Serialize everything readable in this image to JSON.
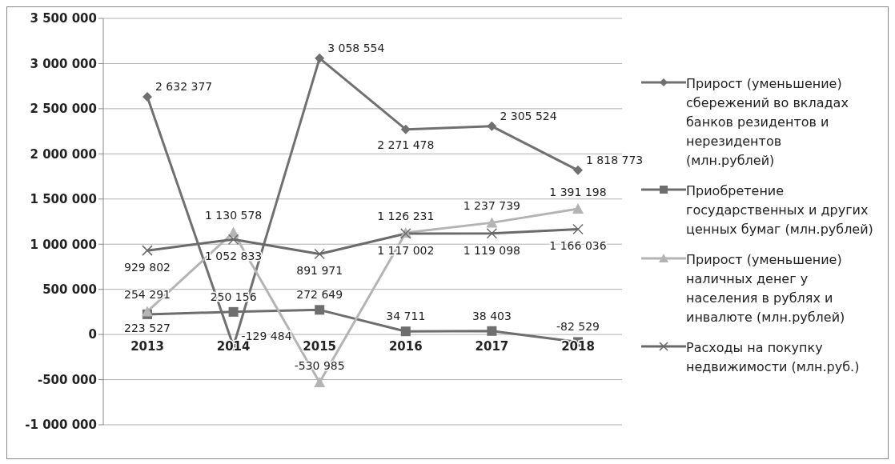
{
  "chart_data": {
    "type": "line",
    "categories": [
      "2013",
      "2014",
      "2015",
      "2016",
      "2017",
      "2018"
    ],
    "ylim": [
      -1000000,
      3500000
    ],
    "yticks": [
      {
        "value": -1000000,
        "label": "-1 000 000"
      },
      {
        "value": -500000,
        "label": "-500 000"
      },
      {
        "value": 0,
        "label": "0"
      },
      {
        "value": 500000,
        "label": "500 000"
      },
      {
        "value": 1000000,
        "label": "1 000 000"
      },
      {
        "value": 1500000,
        "label": "1 500 000"
      },
      {
        "value": 2000000,
        "label": "2 000 000"
      },
      {
        "value": 2500000,
        "label": "2 500 000"
      },
      {
        "value": 3000000,
        "label": "3 000 000"
      },
      {
        "value": 3500000,
        "label": "3 500 000"
      }
    ],
    "grid": "y",
    "legend": "right",
    "series": [
      {
        "name": "Прирост (уменьшение) сбережений  во вкладах банков резидентов и нерезидентов (млн.рублей)",
        "color": "#707070",
        "marker": "diamond",
        "values": [
          2632377,
          -129484,
          3058554,
          2271478,
          2305524,
          1818773
        ],
        "value_labels": [
          "2 632 377",
          "-129 484",
          "3 058 554",
          "2 271 478",
          "2 305 524",
          "1 818 773"
        ]
      },
      {
        "name": "Приобретение государственных и других ценных бумаг (млн.рублей)",
        "color": "#6e6e6e",
        "marker": "square",
        "values": [
          223527,
          250156,
          272649,
          34711,
          38403,
          -82529
        ],
        "value_labels": [
          "223 527",
          "250 156",
          "272 649",
          "34 711",
          "38 403",
          "-82 529"
        ]
      },
      {
        "name": "Прирост (уменьшение) наличных денег у населения в рублях и инвалюте (млн.рублей)",
        "color": "#b4b4b4",
        "marker": "triangle",
        "values": [
          254291,
          1130578,
          -530985,
          1126231,
          1237739,
          1391198
        ],
        "value_labels": [
          "254 291",
          "1 130 578",
          "-530 985",
          "1 126 231",
          "1 237 739",
          "1 391 198"
        ]
      },
      {
        "name": "Расходы на покупку недвижимости (млн.руб.)",
        "color": "#6a6a6a",
        "marker": "cross",
        "values": [
          929802,
          1052833,
          891971,
          1117002,
          1119098,
          1166036
        ],
        "value_labels": [
          "929 802",
          "1 052 833",
          "891 971",
          "1 117 002",
          "1 119 098",
          "1 166 036"
        ]
      }
    ]
  }
}
